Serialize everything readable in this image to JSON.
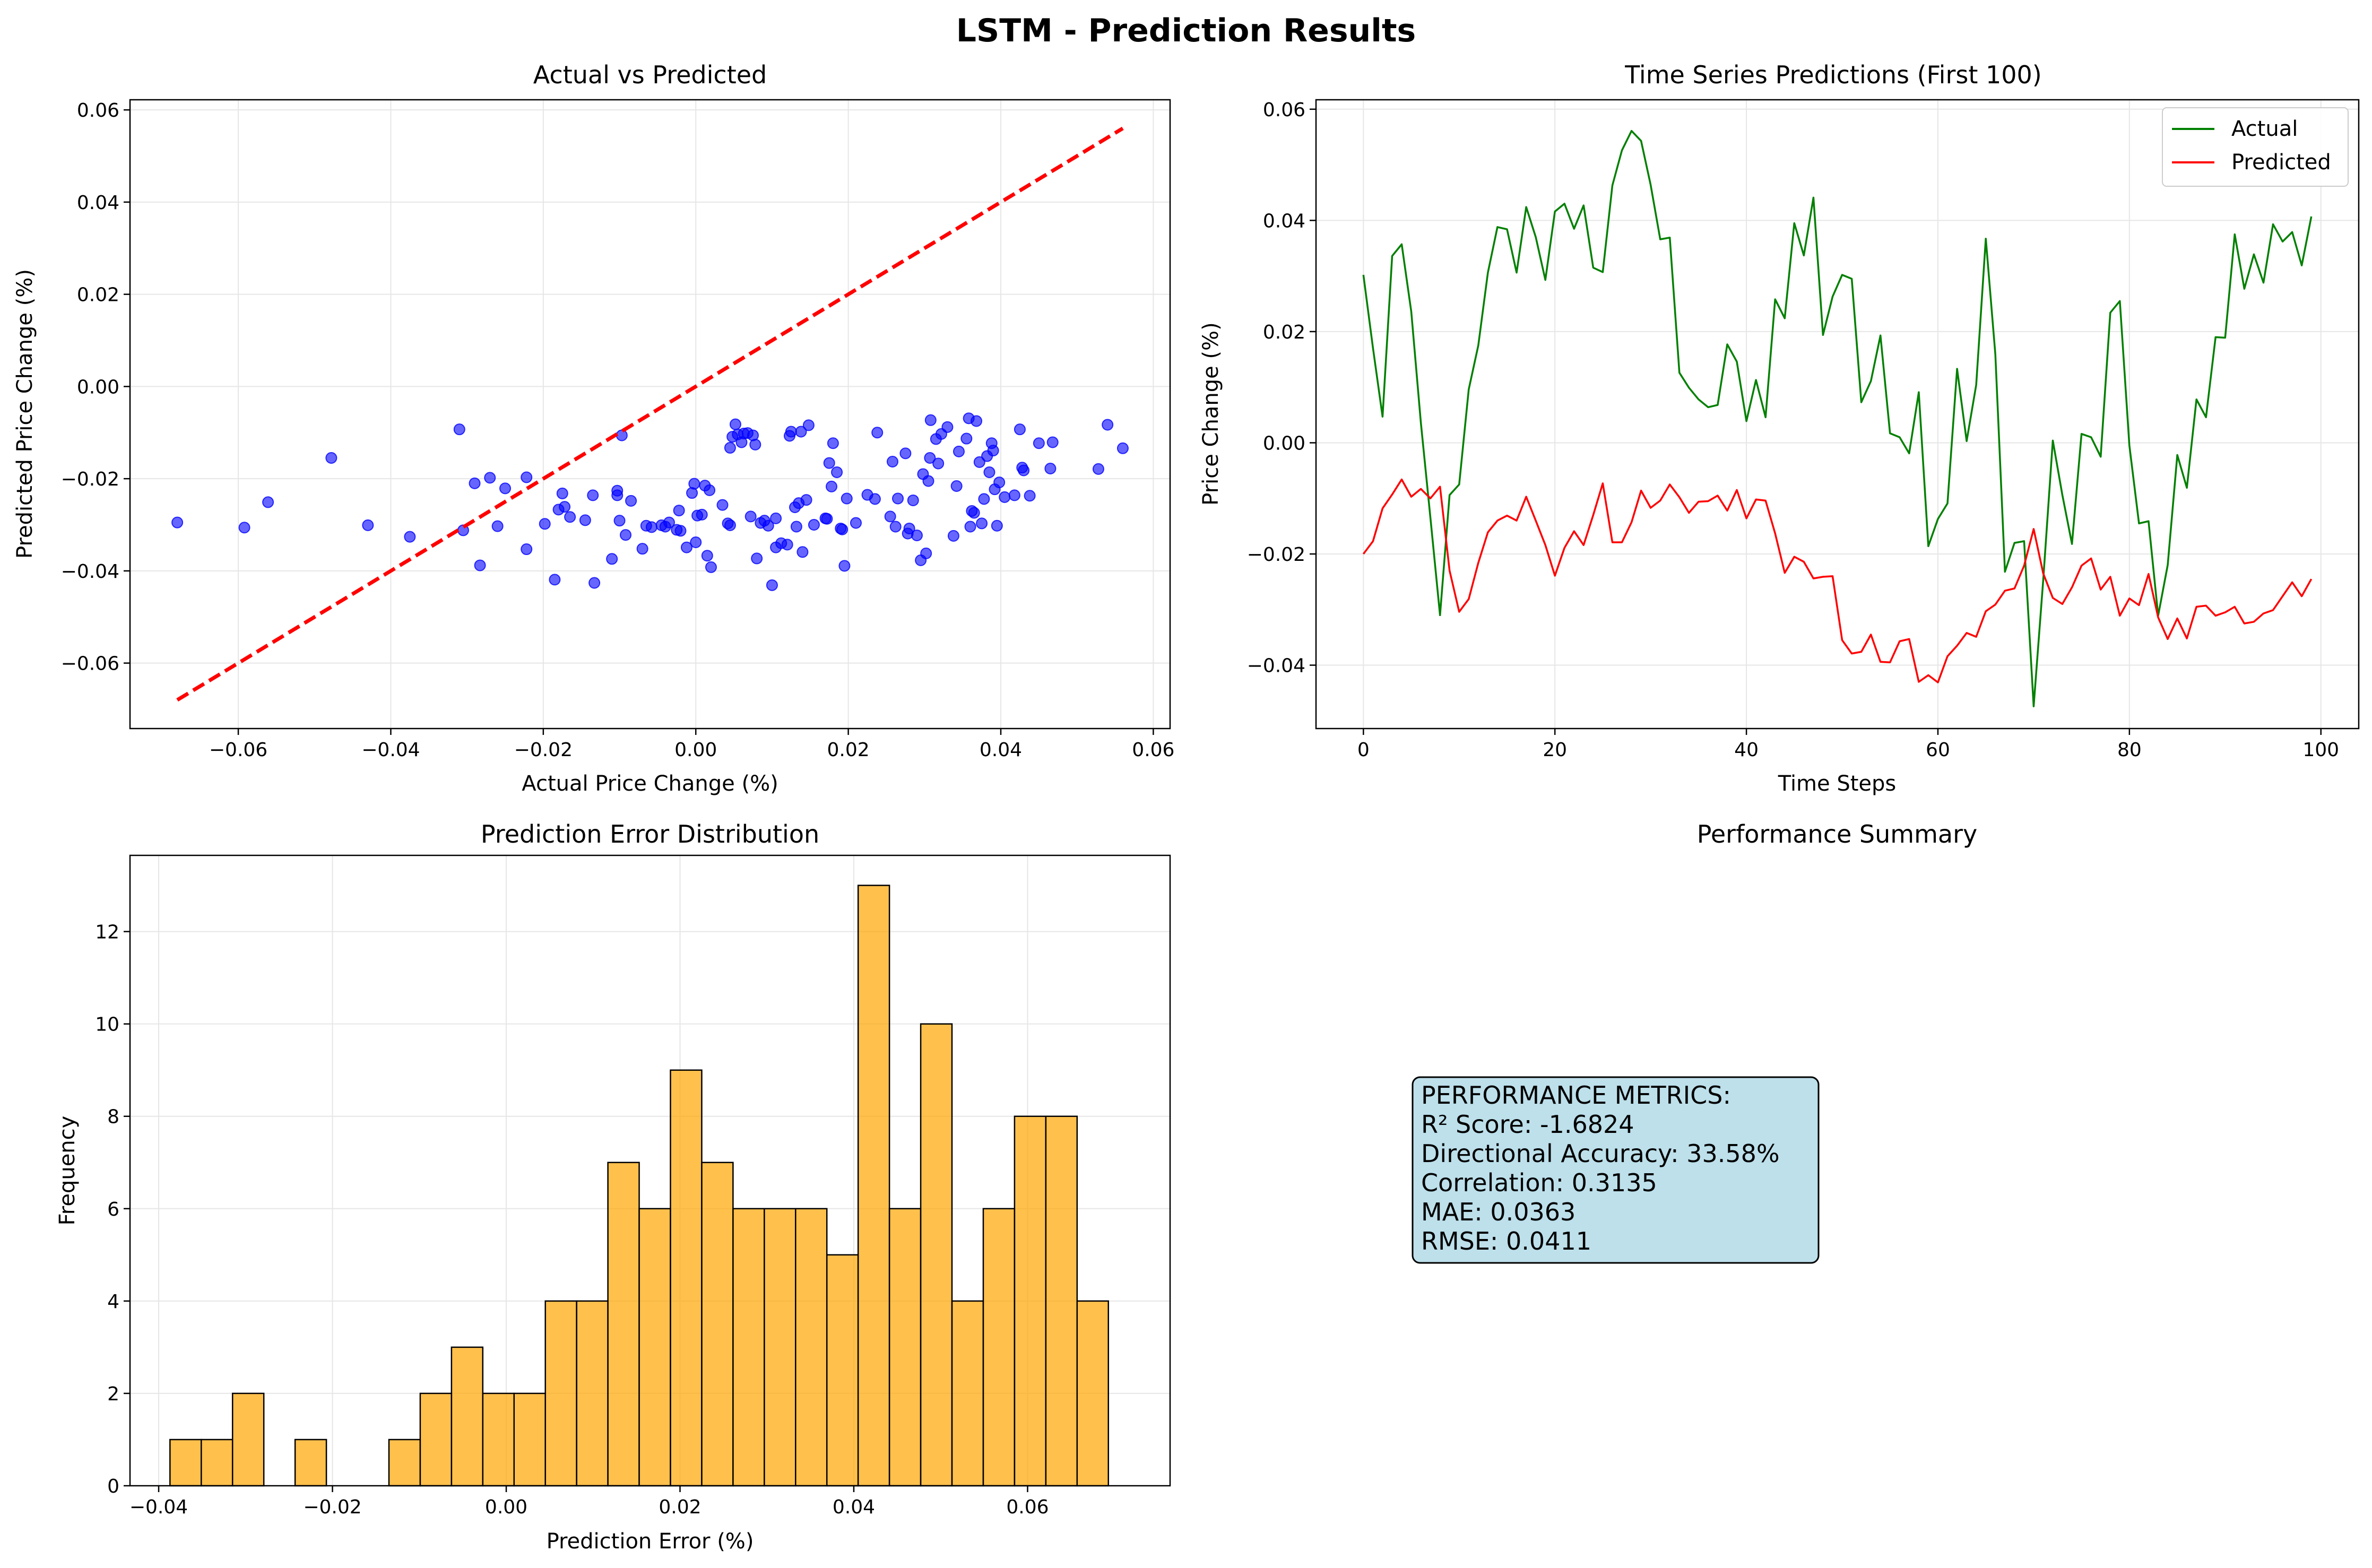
{
  "figure": {
    "title": "LSTM - Prediction Results"
  },
  "colors": {
    "scatter_points": "#0000ff",
    "ideal_line": "#ff0000",
    "actual_line": "#008000",
    "predicted_line": "#ff0000",
    "histogram_bars": "#ffa500",
    "summary_box": "#add8e6",
    "grid": "#e6e6e6"
  },
  "chart_data": [
    {
      "id": "scatter",
      "type": "scatter",
      "title": "Actual vs Predicted",
      "xlabel": "Actual Price Change (%)",
      "ylabel": "Predicted Price Change (%)",
      "xlim": [
        -0.0742,
        0.0622
      ],
      "ylim": [
        -0.0742,
        0.0622
      ],
      "xticks": [
        -0.06,
        -0.04,
        -0.02,
        0.0,
        0.02,
        0.04,
        0.06
      ],
      "yticks": [
        -0.06,
        -0.04,
        -0.02,
        0.0,
        0.02,
        0.04,
        0.06
      ],
      "tick_labels": [
        "−0.06",
        "−0.04",
        "−0.02",
        "0.00",
        "0.02",
        "0.04",
        "0.06"
      ],
      "grid": true,
      "ideal_line": {
        "x": [
          -0.068,
          0.056
        ],
        "y": [
          -0.068,
          0.056
        ]
      },
      "points": [
        [
          -0.068,
          -0.0295
        ],
        [
          -0.0592,
          -0.0306
        ],
        [
          -0.0561,
          -0.0251
        ],
        [
          -0.0478,
          -0.0155
        ],
        [
          -0.043,
          -0.0301
        ],
        [
          -0.0375,
          -0.0326
        ],
        [
          -0.031,
          -0.0093
        ],
        [
          -0.0305,
          -0.0312
        ],
        [
          -0.029,
          -0.021
        ],
        [
          -0.0283,
          -0.0388
        ],
        [
          -0.027,
          -0.0198
        ],
        [
          -0.026,
          -0.0303
        ],
        [
          -0.025,
          -0.0221
        ],
        [
          -0.0222,
          -0.0197
        ],
        [
          -0.0222,
          -0.0353
        ],
        [
          -0.0198,
          -0.0298
        ],
        [
          -0.0185,
          -0.0419
        ],
        [
          -0.018,
          -0.0267
        ],
        [
          -0.0175,
          -0.0232
        ],
        [
          -0.0172,
          -0.0261
        ],
        [
          -0.0165,
          -0.0283
        ],
        [
          -0.0145,
          -0.029
        ],
        [
          -0.0135,
          -0.0236
        ],
        [
          -0.0133,
          -0.0426
        ],
        [
          -0.011,
          -0.0374
        ],
        [
          -0.0103,
          -0.0236
        ],
        [
          -0.0103,
          -0.0226
        ],
        [
          -0.01,
          -0.0291
        ],
        [
          -0.0097,
          -0.0106
        ],
        [
          -0.0092,
          -0.0322
        ],
        [
          -0.0085,
          -0.0248
        ],
        [
          -0.007,
          -0.0352
        ],
        [
          -0.0065,
          -0.0302
        ],
        [
          -0.0058,
          -0.0305
        ],
        [
          -0.0045,
          -0.0301
        ],
        [
          -0.004,
          -0.0304
        ],
        [
          -0.0035,
          -0.0295
        ],
        [
          -0.0025,
          -0.0311
        ],
        [
          -0.0022,
          -0.0269
        ],
        [
          -0.002,
          -0.0313
        ],
        [
          -0.0012,
          -0.0349
        ],
        [
          -0.0005,
          -0.0231
        ],
        [
          -0.0002,
          -0.0211
        ],
        [
          0.0,
          -0.0338
        ],
        [
          0.0002,
          -0.028
        ],
        [
          0.0008,
          -0.0278
        ],
        [
          0.0012,
          -0.0215
        ],
        [
          0.0015,
          -0.0367
        ],
        [
          0.0018,
          -0.0225
        ],
        [
          0.002,
          -0.0392
        ],
        [
          0.0035,
          -0.0257
        ],
        [
          0.0042,
          -0.0297
        ],
        [
          0.0045,
          -0.0301
        ],
        [
          0.0045,
          -0.0133
        ],
        [
          0.0048,
          -0.0109
        ],
        [
          0.0052,
          -0.0082
        ],
        [
          0.0055,
          -0.0104
        ],
        [
          0.006,
          -0.0121
        ],
        [
          0.0063,
          -0.0102
        ],
        [
          0.0068,
          -0.0101
        ],
        [
          0.0072,
          -0.0282
        ],
        [
          0.0075,
          -0.0106
        ],
        [
          0.0078,
          -0.0126
        ],
        [
          0.008,
          -0.0373
        ],
        [
          0.0085,
          -0.0296
        ],
        [
          0.009,
          -0.0291
        ],
        [
          0.0095,
          -0.0302
        ],
        [
          0.01,
          -0.0431
        ],
        [
          0.0105,
          -0.0286
        ],
        [
          0.0105,
          -0.0349
        ],
        [
          0.0112,
          -0.034
        ],
        [
          0.012,
          -0.0343
        ],
        [
          0.0123,
          -0.0107
        ],
        [
          0.0125,
          -0.0098
        ],
        [
          0.013,
          -0.0262
        ],
        [
          0.0132,
          -0.0304
        ],
        [
          0.0135,
          -0.0253
        ],
        [
          0.0138,
          -0.0098
        ],
        [
          0.014,
          -0.0359
        ],
        [
          0.0145,
          -0.0246
        ],
        [
          0.0148,
          -0.0084
        ],
        [
          0.0155,
          -0.03
        ],
        [
          0.017,
          -0.0286
        ],
        [
          0.0172,
          -0.0287
        ],
        [
          0.0175,
          -0.0166
        ],
        [
          0.0178,
          -0.0217
        ],
        [
          0.018,
          -0.0123
        ],
        [
          0.0185,
          -0.0186
        ],
        [
          0.019,
          -0.0308
        ],
        [
          0.0192,
          -0.031
        ],
        [
          0.0195,
          -0.0389
        ],
        [
          0.0198,
          -0.0243
        ],
        [
          0.021,
          -0.0296
        ],
        [
          0.0225,
          -0.0235
        ],
        [
          0.0235,
          -0.0244
        ],
        [
          0.0238,
          -0.01
        ],
        [
          0.0255,
          -0.0282
        ],
        [
          0.0258,
          -0.0163
        ],
        [
          0.0262,
          -0.0304
        ],
        [
          0.0265,
          -0.0243
        ],
        [
          0.0275,
          -0.0145
        ],
        [
          0.0278,
          -0.0319
        ],
        [
          0.028,
          -0.0308
        ],
        [
          0.0285,
          -0.0247
        ],
        [
          0.029,
          -0.0323
        ],
        [
          0.0295,
          -0.0377
        ],
        [
          0.0298,
          -0.019
        ],
        [
          0.0302,
          -0.0362
        ],
        [
          0.0305,
          -0.0205
        ],
        [
          0.0307,
          -0.0155
        ],
        [
          0.0308,
          -0.0073
        ],
        [
          0.0315,
          -0.0114
        ],
        [
          0.0318,
          -0.0167
        ],
        [
          0.0322,
          -0.0103
        ],
        [
          0.033,
          -0.0088
        ],
        [
          0.0338,
          -0.0324
        ],
        [
          0.0342,
          -0.0216
        ],
        [
          0.0345,
          -0.0141
        ],
        [
          0.0355,
          -0.0113
        ],
        [
          0.0358,
          -0.0069
        ],
        [
          0.036,
          -0.0304
        ],
        [
          0.0362,
          -0.027
        ],
        [
          0.0365,
          -0.0274
        ],
        [
          0.0368,
          -0.0075
        ],
        [
          0.0372,
          -0.0164
        ],
        [
          0.0375,
          -0.0297
        ],
        [
          0.0378,
          -0.0244
        ],
        [
          0.0382,
          -0.0151
        ],
        [
          0.0385,
          -0.0186
        ],
        [
          0.0388,
          -0.0123
        ],
        [
          0.039,
          -0.0139
        ],
        [
          0.0392,
          -0.0223
        ],
        [
          0.0395,
          -0.0302
        ],
        [
          0.0398,
          -0.0208
        ],
        [
          0.0405,
          -0.024
        ],
        [
          0.0418,
          -0.0236
        ],
        [
          0.0425,
          -0.0093
        ],
        [
          0.0428,
          -0.0176
        ],
        [
          0.043,
          -0.0182
        ],
        [
          0.0438,
          -0.0237
        ],
        [
          0.045,
          -0.0123
        ],
        [
          0.0465,
          -0.0178
        ],
        [
          0.0468,
          -0.0121
        ],
        [
          0.0528,
          -0.0179
        ],
        [
          0.054,
          -0.0083
        ],
        [
          0.056,
          -0.0134
        ]
      ]
    },
    {
      "id": "timeseries",
      "type": "line",
      "title": "Time Series Predictions (First 100)",
      "xlabel": "Time Steps",
      "ylabel": "Price Change (%)",
      "xlim": [
        -4.95,
        103.95
      ],
      "ylim": [
        -0.0514,
        0.0617
      ],
      "xticks": [
        0,
        20,
        40,
        60,
        80,
        100
      ],
      "yticks": [
        -0.04,
        -0.02,
        0.0,
        0.02,
        0.04,
        0.06
      ],
      "ytick_labels": [
        "−0.04",
        "−0.02",
        "0.00",
        "0.02",
        "0.04",
        "0.06"
      ],
      "grid": true,
      "legend": "upper right",
      "series": [
        {
          "name": "Actual",
          "color": "#008000",
          "values": [
            0.0302,
            0.017,
            0.0047,
            0.0336,
            0.0357,
            0.0236,
            0.0036,
            -0.0135,
            -0.031,
            -0.0094,
            -0.0075,
            0.0096,
            0.0175,
            0.0306,
            0.0388,
            0.0384,
            0.0306,
            0.0424,
            0.037,
            0.0293,
            0.0416,
            0.043,
            0.0385,
            0.0427,
            0.0315,
            0.0307,
            0.0463,
            0.0526,
            0.0561,
            0.0543,
            0.0464,
            0.0366,
            0.0369,
            0.0126,
            0.0099,
            0.0078,
            0.0064,
            0.0068,
            0.0177,
            0.0146,
            0.0039,
            0.0113,
            0.0046,
            0.0258,
            0.0224,
            0.0395,
            0.0337,
            0.0441,
            0.0194,
            0.0263,
            0.0302,
            0.0295,
            0.0073,
            0.0111,
            0.0193,
            0.0017,
            0.001,
            -0.0019,
            0.0091,
            -0.0186,
            -0.0137,
            -0.0109,
            0.0133,
            0.0003,
            0.0104,
            0.0367,
            0.0159,
            -0.0232,
            -0.018,
            -0.0177,
            -0.0474,
            -0.0247,
            0.0004,
            -0.0094,
            -0.0182,
            0.0016,
            0.001,
            -0.0025,
            0.0234,
            0.0255,
            -0.0005,
            -0.0145,
            -0.0141,
            -0.0311,
            -0.022,
            -0.0022,
            -0.0081,
            0.0078,
            0.0046,
            0.019,
            0.0189,
            0.0375,
            0.0277,
            0.0339,
            0.0288,
            0.0393,
            0.0362,
            0.0379,
            0.0319,
            0.0407
          ]
        },
        {
          "name": "Predicted",
          "color": "#ff0000",
          "values": [
            -0.02,
            -0.0177,
            -0.0118,
            -0.0093,
            -0.0066,
            -0.0097,
            -0.0083,
            -0.01,
            -0.0079,
            -0.023,
            -0.0304,
            -0.0281,
            -0.0216,
            -0.0161,
            -0.014,
            -0.0131,
            -0.014,
            -0.0097,
            -0.014,
            -0.0184,
            -0.0239,
            -0.0189,
            -0.0159,
            -0.0184,
            -0.013,
            -0.0073,
            -0.0179,
            -0.0179,
            -0.0143,
            -0.0086,
            -0.0117,
            -0.0104,
            -0.0075,
            -0.0098,
            -0.0126,
            -0.0106,
            -0.0105,
            -0.0095,
            -0.0122,
            -0.0085,
            -0.0136,
            -0.0102,
            -0.0104,
            -0.0163,
            -0.0234,
            -0.0205,
            -0.0214,
            -0.0244,
            -0.0241,
            -0.024,
            -0.0355,
            -0.0379,
            -0.0376,
            -0.0345,
            -0.0394,
            -0.0395,
            -0.0357,
            -0.0353,
            -0.043,
            -0.0418,
            -0.0431,
            -0.0384,
            -0.0365,
            -0.0342,
            -0.0349,
            -0.0303,
            -0.0291,
            -0.0266,
            -0.0262,
            -0.0221,
            -0.0155,
            -0.0235,
            -0.0279,
            -0.029,
            -0.026,
            -0.0221,
            -0.0208,
            -0.0264,
            -0.0241,
            -0.0311,
            -0.028,
            -0.0292,
            -0.0236,
            -0.0314,
            -0.0353,
            -0.0316,
            -0.0352,
            -0.0295,
            -0.0293,
            -0.0311,
            -0.0305,
            -0.0295,
            -0.0325,
            -0.0322,
            -0.0307,
            -0.0301,
            -0.0276,
            -0.0251,
            -0.0276,
            -0.0245
          ]
        }
      ]
    },
    {
      "id": "histogram",
      "type": "bar",
      "title": "Prediction Error Distribution",
      "xlabel": "Prediction Error (%)",
      "ylabel": "Frequency",
      "xlim": [
        -0.0433,
        0.0764
      ],
      "ylim": [
        0,
        13.65
      ],
      "xticks": [
        -0.04,
        -0.02,
        0.0,
        0.02,
        0.04,
        0.06
      ],
      "xtick_labels": [
        "−0.04",
        "−0.02",
        "0.00",
        "0.02",
        "0.04",
        "0.06"
      ],
      "yticks": [
        0,
        2,
        4,
        6,
        8,
        10,
        12
      ],
      "grid": true,
      "bin_start": -0.0387,
      "bin_width": 0.0036,
      "values": [
        1,
        1,
        2,
        0,
        1,
        0,
        0,
        1,
        2,
        3,
        2,
        2,
        4,
        4,
        7,
        6,
        9,
        7,
        6,
        6,
        6,
        5,
        13,
        6,
        10,
        4,
        6,
        8,
        8,
        4
      ]
    }
  ],
  "summary": {
    "title": "Performance Summary",
    "lines": [
      "PERFORMANCE METRICS:",
      "R² Score: -1.6824",
      "Directional Accuracy: 33.58%",
      "Correlation: 0.3135",
      "MAE: 0.0363",
      "RMSE: 0.0411"
    ]
  }
}
